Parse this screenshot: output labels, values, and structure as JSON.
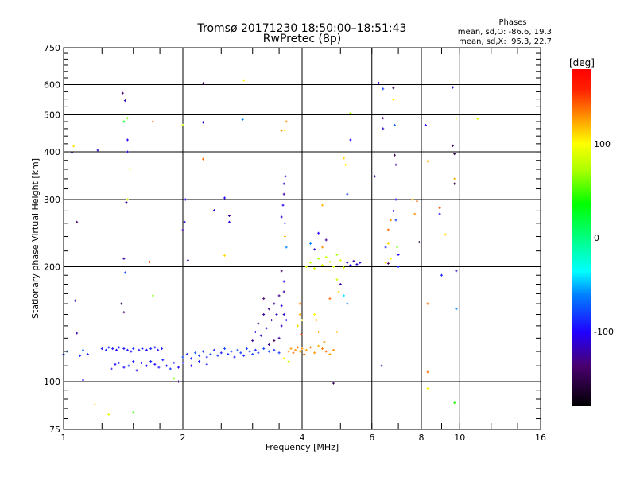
{
  "chart_data": {
    "type": "scatter",
    "title": "Tromsø 20171230 18:50:00–18:51:43",
    "subtitle": "RwPretec (8p)",
    "stats": {
      "heading": "Phases",
      "o_line": "mean, sd,O: -86.6, 19.3",
      "x_line": "mean, sd,X:  95.3, 22.7"
    },
    "xlabel": "Frequency [MHz]",
    "ylabel": "Stationary phase Virtual Height [km]",
    "xscale": "log2",
    "yscale": "log",
    "xlim": [
      1,
      16
    ],
    "ylim": [
      75,
      750
    ],
    "xticks": [
      1,
      2,
      4,
      6,
      8,
      10,
      16
    ],
    "xgrid": [
      2,
      4,
      6,
      8,
      10
    ],
    "yticks": [
      75,
      100,
      200,
      300,
      400,
      500,
      600,
      750
    ],
    "ygrid": [
      100,
      200,
      300,
      400,
      500,
      600
    ],
    "colorbar": {
      "label": "[deg]",
      "range": [
        -180,
        180
      ],
      "ticks": [
        100,
        0,
        -100
      ]
    },
    "points_format": [
      "frequency_MHz",
      "height_km",
      "phase_deg"
    ],
    "points": [
      [
        1.0,
        118,
        -80
      ],
      [
        1.02,
        120,
        -60
      ],
      [
        1.06,
        414,
        110
      ],
      [
        1.05,
        398,
        -120
      ],
      [
        1.08,
        262,
        -130
      ],
      [
        1.07,
        163,
        -110
      ],
      [
        1.08,
        134,
        -120
      ],
      [
        1.1,
        117,
        -90
      ],
      [
        1.12,
        121,
        -70
      ],
      [
        1.15,
        118,
        -90
      ],
      [
        1.12,
        101,
        -100
      ],
      [
        1.22,
        404,
        -110
      ],
      [
        1.25,
        122,
        -95
      ],
      [
        1.28,
        121,
        -90
      ],
      [
        1.3,
        123,
        -85
      ],
      [
        1.33,
        122,
        -95
      ],
      [
        1.36,
        121,
        -100
      ],
      [
        1.38,
        123,
        -90
      ],
      [
        1.42,
        122,
        -95
      ],
      [
        1.45,
        121,
        -92
      ],
      [
        1.48,
        120,
        -100
      ],
      [
        1.5,
        122,
        -85
      ],
      [
        1.55,
        121,
        -95
      ],
      [
        1.58,
        122,
        -90
      ],
      [
        1.62,
        121,
        -98
      ],
      [
        1.66,
        122,
        -88
      ],
      [
        1.7,
        123,
        -92
      ],
      [
        1.73,
        121,
        -96
      ],
      [
        1.77,
        122,
        -90
      ],
      [
        1.32,
        108,
        -95
      ],
      [
        1.35,
        111,
        -100
      ],
      [
        1.38,
        112,
        -90
      ],
      [
        1.42,
        109,
        -98
      ],
      [
        1.46,
        110,
        -80
      ],
      [
        1.5,
        113,
        -95
      ],
      [
        1.53,
        107,
        -100
      ],
      [
        1.57,
        112,
        -90
      ],
      [
        1.62,
        110,
        -95
      ],
      [
        1.66,
        113,
        -88
      ],
      [
        1.7,
        111,
        -100
      ],
      [
        1.74,
        109,
        -92
      ],
      [
        1.78,
        114,
        -90
      ],
      [
        1.82,
        110,
        -96
      ],
      [
        1.86,
        108,
        -85
      ],
      [
        1.9,
        112,
        -92
      ],
      [
        1.95,
        109,
        -98
      ],
      [
        1.2,
        87,
        110
      ],
      [
        1.3,
        82,
        90
      ],
      [
        1.5,
        83,
        50
      ],
      [
        1.45,
        490,
        60
      ],
      [
        1.42,
        480,
        30
      ],
      [
        1.68,
        480,
        140
      ],
      [
        1.47,
        360,
        100
      ],
      [
        1.44,
        295,
        -120
      ],
      [
        1.45,
        300,
        80
      ],
      [
        1.42,
        210,
        -120
      ],
      [
        1.43,
        193,
        -80
      ],
      [
        1.4,
        160,
        -150
      ],
      [
        1.42,
        152,
        -130
      ],
      [
        1.65,
        206,
        150
      ],
      [
        1.68,
        168,
        60
      ],
      [
        1.43,
        545,
        -110
      ],
      [
        1.41,
        570,
        -130
      ],
      [
        1.45,
        430,
        -100
      ],
      [
        1.45,
        400,
        -110
      ],
      [
        1.9,
        102,
        60
      ],
      [
        1.95,
        100,
        -130
      ],
      [
        2.0,
        116,
        -80
      ],
      [
        2.05,
        118,
        -85
      ],
      [
        2.1,
        115,
        -90
      ],
      [
        2.15,
        119,
        -75
      ],
      [
        2.2,
        117,
        -85
      ],
      [
        2.25,
        120,
        -80
      ],
      [
        2.3,
        116,
        -90
      ],
      [
        2.35,
        118,
        -75
      ],
      [
        2.4,
        121,
        -85
      ],
      [
        2.45,
        117,
        -80
      ],
      [
        2.5,
        119,
        -90
      ],
      [
        2.55,
        122,
        -78
      ],
      [
        2.6,
        118,
        -85
      ],
      [
        2.65,
        120,
        -80
      ],
      [
        2.7,
        116,
        -90
      ],
      [
        2.75,
        121,
        -75
      ],
      [
        2.8,
        119,
        -82
      ],
      [
        2.85,
        117,
        -88
      ],
      [
        2.9,
        122,
        -80
      ],
      [
        2.95,
        120,
        -85
      ],
      [
        3.0,
        118,
        -78
      ],
      [
        3.05,
        121,
        -90
      ],
      [
        3.1,
        119,
        -84
      ],
      [
        3.2,
        122,
        -80
      ],
      [
        3.3,
        120,
        -76
      ],
      [
        3.4,
        121,
        -86
      ],
      [
        3.5,
        119,
        -82
      ],
      [
        2.0,
        112,
        -95
      ],
      [
        2.1,
        110,
        -100
      ],
      [
        2.2,
        113,
        -90
      ],
      [
        2.3,
        111,
        -95
      ],
      [
        2.0,
        250,
        -120
      ],
      [
        2.02,
        262,
        -110
      ],
      [
        2.03,
        300,
        -100
      ],
      [
        2.25,
        605,
        -130
      ],
      [
        2.25,
        478,
        -110
      ],
      [
        2.25,
        383,
        140
      ],
      [
        2.4,
        281,
        -110
      ],
      [
        2.55,
        214,
        110
      ],
      [
        2.55,
        303,
        -100
      ],
      [
        2.62,
        272,
        -120
      ],
      [
        2.62,
        262,
        -110
      ],
      [
        2.85,
        616,
        100
      ],
      [
        2.83,
        486,
        -60
      ],
      [
        2.06,
        208,
        -120
      ],
      [
        2.0,
        470,
        80
      ],
      [
        3.0,
        128,
        -120
      ],
      [
        3.05,
        135,
        -110
      ],
      [
        3.1,
        142,
        -125
      ],
      [
        3.15,
        132,
        -115
      ],
      [
        3.2,
        150,
        -120
      ],
      [
        3.25,
        138,
        -110
      ],
      [
        3.3,
        155,
        -125
      ],
      [
        3.35,
        145,
        -115
      ],
      [
        3.4,
        160,
        -120
      ],
      [
        3.45,
        150,
        -110
      ],
      [
        3.5,
        168,
        -125
      ],
      [
        3.55,
        158,
        -105
      ],
      [
        3.6,
        172,
        -120
      ],
      [
        3.6,
        150,
        -110
      ],
      [
        3.4,
        128,
        -130
      ],
      [
        3.3,
        125,
        -125
      ],
      [
        3.55,
        140,
        -115
      ],
      [
        3.2,
        165,
        -130
      ],
      [
        3.5,
        130,
        -120
      ],
      [
        3.65,
        145,
        -100
      ],
      [
        3.55,
        270,
        -110
      ],
      [
        3.58,
        290,
        -100
      ],
      [
        3.6,
        310,
        -120
      ],
      [
        3.62,
        260,
        -80
      ],
      [
        3.6,
        330,
        -110
      ],
      [
        3.62,
        240,
        120
      ],
      [
        3.65,
        225,
        -60
      ],
      [
        3.65,
        480,
        130
      ],
      [
        3.62,
        455,
        100
      ],
      [
        3.55,
        455,
        130
      ],
      [
        3.63,
        345,
        -110
      ],
      [
        3.55,
        195,
        -130
      ],
      [
        3.6,
        183,
        -100
      ],
      [
        3.7,
        120,
        130
      ],
      [
        3.75,
        122,
        125
      ],
      [
        3.8,
        119,
        140
      ],
      [
        3.85,
        121,
        130
      ],
      [
        3.9,
        123,
        135
      ],
      [
        3.95,
        120,
        120
      ],
      [
        4.0,
        122,
        130
      ],
      [
        4.05,
        118,
        140
      ],
      [
        4.1,
        121,
        125
      ],
      [
        4.2,
        123,
        135
      ],
      [
        4.3,
        119,
        130
      ],
      [
        4.4,
        124,
        120
      ],
      [
        4.5,
        122,
        135
      ],
      [
        4.6,
        120,
        140
      ],
      [
        4.7,
        118,
        125
      ],
      [
        4.8,
        121,
        130
      ],
      [
        3.6,
        115,
        100
      ],
      [
        3.7,
        113,
        80
      ],
      [
        3.9,
        140,
        110
      ],
      [
        3.95,
        150,
        120
      ],
      [
        3.95,
        160,
        130
      ],
      [
        4.0,
        145,
        105
      ],
      [
        3.98,
        133,
        150
      ],
      [
        4.3,
        150,
        100
      ],
      [
        4.35,
        145,
        120
      ],
      [
        4.4,
        135,
        125
      ],
      [
        4.55,
        127,
        130
      ],
      [
        4.9,
        135,
        120
      ],
      [
        4.1,
        200,
        90
      ],
      [
        4.2,
        205,
        80
      ],
      [
        4.3,
        198,
        85
      ],
      [
        4.4,
        210,
        70
      ],
      [
        4.5,
        202,
        90
      ],
      [
        4.6,
        212,
        80
      ],
      [
        4.7,
        206,
        75
      ],
      [
        4.8,
        200,
        85
      ],
      [
        4.9,
        215,
        70
      ],
      [
        5.0,
        208,
        90
      ],
      [
        5.1,
        199,
        80
      ],
      [
        4.5,
        225,
        130
      ],
      [
        4.4,
        245,
        -100
      ],
      [
        4.6,
        235,
        -120
      ],
      [
        4.3,
        222,
        -110
      ],
      [
        4.2,
        230,
        -60
      ],
      [
        5.2,
        205,
        -110
      ],
      [
        5.3,
        202,
        -100
      ],
      [
        5.4,
        207,
        -120
      ],
      [
        5.5,
        203,
        -110
      ],
      [
        5.6,
        205,
        -105
      ],
      [
        5.0,
        180,
        -120
      ],
      [
        4.95,
        172,
        110
      ],
      [
        4.9,
        185,
        80
      ],
      [
        5.1,
        168,
        -40
      ],
      [
        5.2,
        160,
        -60
      ],
      [
        4.7,
        165,
        140
      ],
      [
        5.3,
        430,
        -100
      ],
      [
        5.1,
        385,
        110
      ],
      [
        5.2,
        310,
        -80
      ],
      [
        5.15,
        370,
        100
      ],
      [
        4.5,
        290,
        120
      ],
      [
        5.3,
        505,
        70
      ],
      [
        4.8,
        99,
        -140
      ],
      [
        6.1,
        345,
        -120
      ],
      [
        6.25,
        606,
        -110
      ],
      [
        6.4,
        585,
        -80
      ],
      [
        6.4,
        490,
        -130
      ],
      [
        6.4,
        460,
        -110
      ],
      [
        6.35,
        110,
        -120
      ],
      [
        6.5,
        225,
        -90
      ],
      [
        6.5,
        205,
        110
      ],
      [
        6.6,
        230,
        110
      ],
      [
        6.6,
        250,
        140
      ],
      [
        6.7,
        265,
        130
      ],
      [
        6.8,
        280,
        -100
      ],
      [
        6.9,
        300,
        -90
      ],
      [
        6.8,
        588,
        -140
      ],
      [
        6.8,
        548,
        100
      ],
      [
        6.85,
        470,
        -70
      ],
      [
        6.85,
        392,
        -140
      ],
      [
        6.9,
        370,
        -120
      ],
      [
        6.9,
        300,
        -100
      ],
      [
        6.9,
        265,
        -80
      ],
      [
        7.0,
        215,
        -100
      ],
      [
        7.0,
        200,
        -90
      ],
      [
        6.7,
        210,
        100
      ],
      [
        6.95,
        225,
        60
      ],
      [
        6.6,
        204,
        -130
      ],
      [
        7.6,
        300,
        120
      ],
      [
        7.7,
        275,
        130
      ],
      [
        7.8,
        297,
        140
      ],
      [
        7.9,
        232,
        -150
      ],
      [
        8.2,
        470,
        -100
      ],
      [
        8.3,
        378,
        120
      ],
      [
        8.3,
        160,
        140
      ],
      [
        8.3,
        106,
        140
      ],
      [
        8.3,
        96,
        100
      ],
      [
        8.9,
        285,
        150
      ],
      [
        8.9,
        275,
        -100
      ],
      [
        9.0,
        190,
        -90
      ],
      [
        9.2,
        243,
        110
      ],
      [
        9.6,
        590,
        -110
      ],
      [
        9.6,
        415,
        -130
      ],
      [
        9.7,
        395,
        -150
      ],
      [
        9.7,
        340,
        120
      ],
      [
        9.7,
        330,
        -150
      ],
      [
        9.8,
        490,
        100
      ],
      [
        9.8,
        195,
        -110
      ],
      [
        9.8,
        155,
        -60
      ],
      [
        9.7,
        88,
        40
      ],
      [
        11.1,
        488,
        90
      ]
    ]
  }
}
